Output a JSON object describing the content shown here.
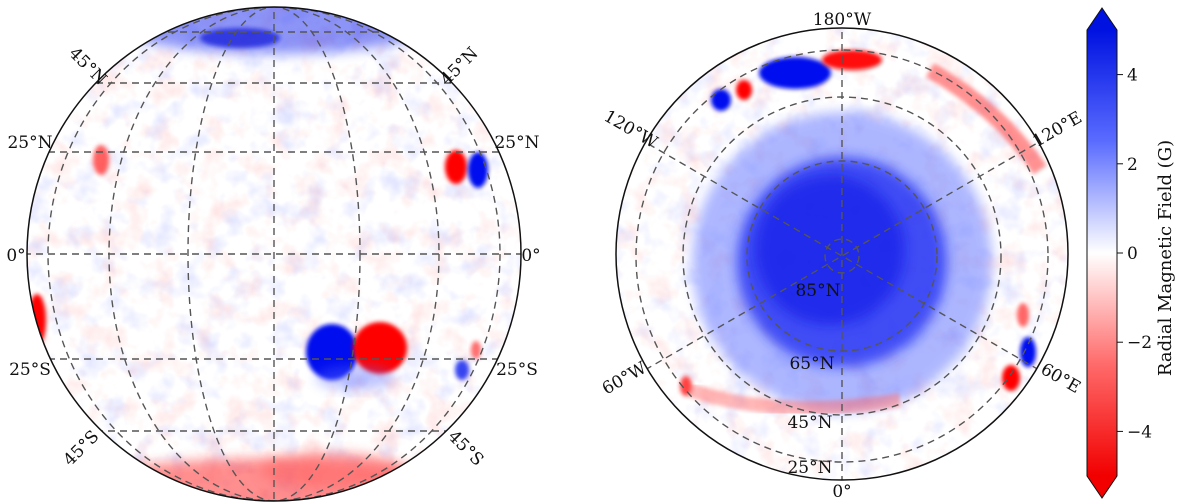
{
  "left_globe": {
    "lat_labels_left": [
      "45°N",
      "25°N",
      "0°",
      "25°S",
      "45°S"
    ],
    "lat_labels_right": [
      "45°N",
      "25°N",
      "0°",
      "25°S",
      "45°S"
    ]
  },
  "right_globe": {
    "lon_labels": [
      "180°W",
      "120°W",
      "120°E",
      "60°W",
      "60°E",
      "0°"
    ],
    "lat_labels": [
      "85°N",
      "65°N",
      "45°N",
      "25°N"
    ]
  },
  "colorbar": {
    "title": "Radial Magnetic Field (G)",
    "ticks": [
      "4",
      "2",
      "0",
      "−2",
      "−4"
    ],
    "tick_values": [
      4,
      2,
      0,
      -2,
      -4
    ],
    "range": [
      -5,
      5
    ],
    "colors": {
      "high": "#0012e0",
      "mid": "#ffffff",
      "low": "#f20000"
    }
  }
}
